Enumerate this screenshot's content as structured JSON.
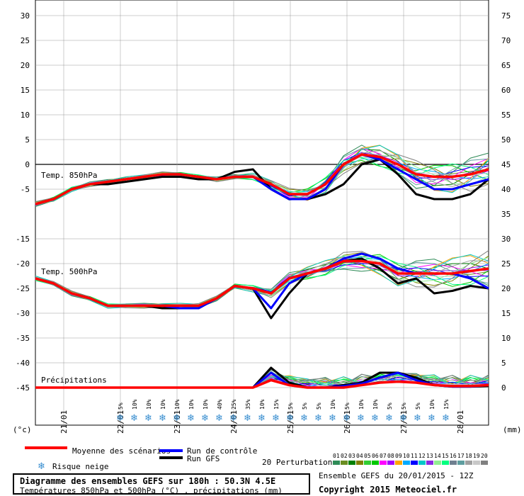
{
  "chart_data": {
    "type": "line",
    "left_axis": {
      "unit": "(°c)",
      "ticks": [
        30,
        25,
        20,
        15,
        10,
        5,
        0,
        -5,
        -15,
        -20,
        -25,
        -30,
        -35,
        -40,
        -45
      ]
    },
    "right_axis": {
      "unit": "(mm)",
      "ticks": [
        75,
        70,
        65,
        60,
        55,
        50,
        45,
        40,
        35,
        30,
        25,
        20,
        15,
        10,
        5,
        0
      ]
    },
    "x_ticks": [
      "21/01",
      "22/01",
      "23/01",
      "24/01",
      "25/01",
      "26/01",
      "27/01",
      "28/01"
    ],
    "panels": [
      {
        "label": "Temp. 850hPa"
      },
      {
        "label": "Temp. 500hPa"
      },
      {
        "label": "Précipitations"
      }
    ],
    "snow_risk": [
      "5%",
      "10%",
      "10%",
      "10%",
      "10%",
      "10%",
      "10%",
      "40%",
      "25%",
      "35%",
      "10%",
      "15%",
      "5%",
      "5%",
      "5%",
      "10%",
      "5%",
      "10%",
      "10%",
      "5%",
      "5%",
      "5%",
      "10%",
      "15%"
    ],
    "series": {
      "t850_mean": [
        -8,
        -7,
        -5,
        -4,
        -3.5,
        -3,
        -2.5,
        -2,
        -2,
        -2.5,
        -3,
        -2.5,
        -2.5,
        -4,
        -6,
        -6,
        -4,
        0,
        2,
        1.5,
        0,
        -2,
        -2.5,
        -2.5,
        -2,
        -1
      ],
      "t850_control": [
        -8,
        -7,
        -5,
        -4,
        -3.5,
        -3,
        -2.5,
        -2,
        -2,
        -2.5,
        -3,
        -2.5,
        -2.5,
        -5,
        -7,
        -7,
        -5,
        0,
        2,
        1,
        -1,
        -3,
        -5,
        -5,
        -4,
        -3
      ],
      "t850_gfs": [
        -8,
        -7,
        -5,
        -4,
        -4,
        -3.5,
        -3,
        -2.5,
        -2.5,
        -3,
        -3,
        -1.5,
        -1,
        -5,
        -7,
        -7,
        -6,
        -4,
        0,
        1,
        -2,
        -6,
        -7,
        -7,
        -6,
        -3
      ],
      "t500_mean": [
        -23,
        -24,
        -26,
        -27,
        -28.5,
        -28.5,
        -28.5,
        -28.5,
        -28.5,
        -28.5,
        -27,
        -24.5,
        -25,
        -26,
        -23,
        -22,
        -21,
        -19.5,
        -19.5,
        -20,
        -22,
        -22,
        -22,
        -22,
        -21.5,
        -21
      ],
      "t500_control": [
        -23,
        -24,
        -26,
        -27,
        -28.5,
        -28.5,
        -28.5,
        -28.5,
        -29,
        -29,
        -27,
        -24.5,
        -25,
        -29,
        -24,
        -22,
        -21,
        -19,
        -18,
        -19,
        -21,
        -22,
        -22,
        -22,
        -23,
        -25
      ],
      "t500_gfs": [
        -23,
        -24,
        -26,
        -27,
        -28.5,
        -28.5,
        -28.5,
        -29,
        -29,
        -29,
        -27,
        -24.5,
        -25,
        -31,
        -26,
        -22,
        -21,
        -19.5,
        -19,
        -21,
        -24,
        -23,
        -26,
        -25.5,
        -24.5,
        -25
      ],
      "precip_mean": [
        0,
        0,
        0,
        0,
        0,
        0,
        0,
        0,
        0,
        0,
        0,
        0,
        0,
        1.5,
        0.5,
        0,
        0,
        0,
        0.5,
        1,
        1.2,
        1,
        0.5,
        0.3,
        0.3,
        0.5
      ],
      "precip_control": [
        0,
        0,
        0,
        0,
        0,
        0,
        0,
        0,
        0,
        0,
        0,
        0,
        0,
        3,
        0.5,
        0,
        0,
        0.3,
        0.8,
        2,
        3,
        1.5,
        0.5,
        0.2,
        0.2,
        0.5
      ],
      "precip_gfs": [
        0,
        0,
        0,
        0,
        0,
        0,
        0,
        0,
        0,
        0,
        0,
        0,
        0,
        4,
        1,
        0,
        0,
        0.5,
        1,
        3,
        3,
        2,
        0.5,
        0.2,
        0.2,
        0.3
      ]
    }
  },
  "legend": {
    "mean": "Moyenne des scénarios",
    "control": "Run de contrôle",
    "gfs": "Run GFS",
    "snow": "Risque neige",
    "perturbations_label": "20 Perturbations",
    "perturbation_ids": [
      "01",
      "02",
      "03",
      "04",
      "05",
      "06",
      "07",
      "08",
      "09",
      "10",
      "11",
      "12",
      "13",
      "14",
      "15",
      "16",
      "17",
      "18",
      "19",
      "20"
    ],
    "perturbation_colors": [
      "#2e8b57",
      "#6b8e23",
      "#008000",
      "#808000",
      "#32cd32",
      "#00c800",
      "#ff00ff",
      "#a000ff",
      "#ffa500",
      "#00aaff",
      "#0000ff",
      "#00c8c8",
      "#8a2be2",
      "#90ee90",
      "#00ff7f",
      "#708090",
      "#5f9ea0",
      "#a0a0a0",
      "#c8c8c8",
      "#808080"
    ],
    "colors": {
      "mean": "#ff0000",
      "control": "#0000ff",
      "gfs": "#000000"
    }
  },
  "footer": {
    "title": "Diagramme des ensembles GEFS sur 180h : 50.3N 4.5E",
    "subtitle": "Températures 850hPa et 500hPa (°C) , précipitations (mm)",
    "run": "Ensemble GEFS du 20/01/2015 - 12Z",
    "copyright": "Copyright 2015 Meteociel.fr"
  }
}
